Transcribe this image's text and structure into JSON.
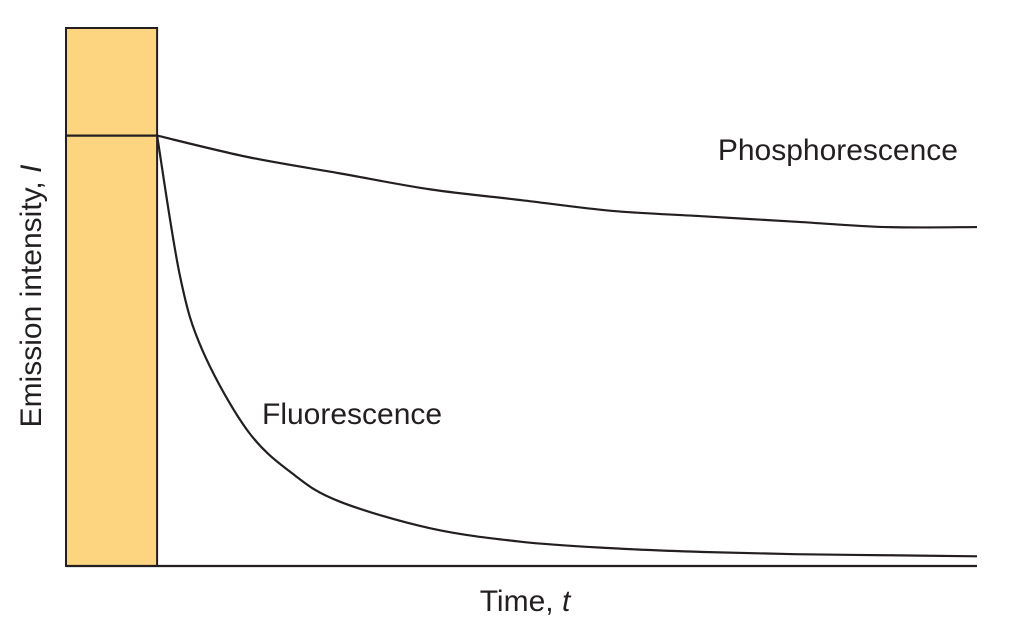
{
  "chart_data": {
    "type": "line",
    "title": "",
    "xlabel": "Time, ",
    "xlabel_var": "t",
    "ylabel": "Emission intensity, ",
    "ylabel_var": "I",
    "xlim": [
      0,
      10
    ],
    "ylim": [
      0,
      1
    ],
    "grid": false,
    "excitation": {
      "x_start": 0,
      "x_end": 1,
      "level": 1,
      "color": "#fdd480"
    },
    "series": [
      {
        "name": "Phosphorescence",
        "x": [
          1,
          2,
          3,
          4,
          5,
          6,
          7,
          8,
          9,
          10
        ],
        "values": [
          0.8,
          0.76,
          0.73,
          0.7,
          0.68,
          0.66,
          0.65,
          0.64,
          0.63,
          0.63
        ]
      },
      {
        "name": "Fluorescence",
        "x": [
          1,
          1.25,
          1.5,
          2,
          2.5,
          3,
          4,
          5,
          6,
          7,
          8,
          9,
          10
        ],
        "values": [
          0.8,
          0.54,
          0.4,
          0.25,
          0.17,
          0.12,
          0.07,
          0.045,
          0.033,
          0.026,
          0.022,
          0.02,
          0.018
        ]
      }
    ]
  }
}
